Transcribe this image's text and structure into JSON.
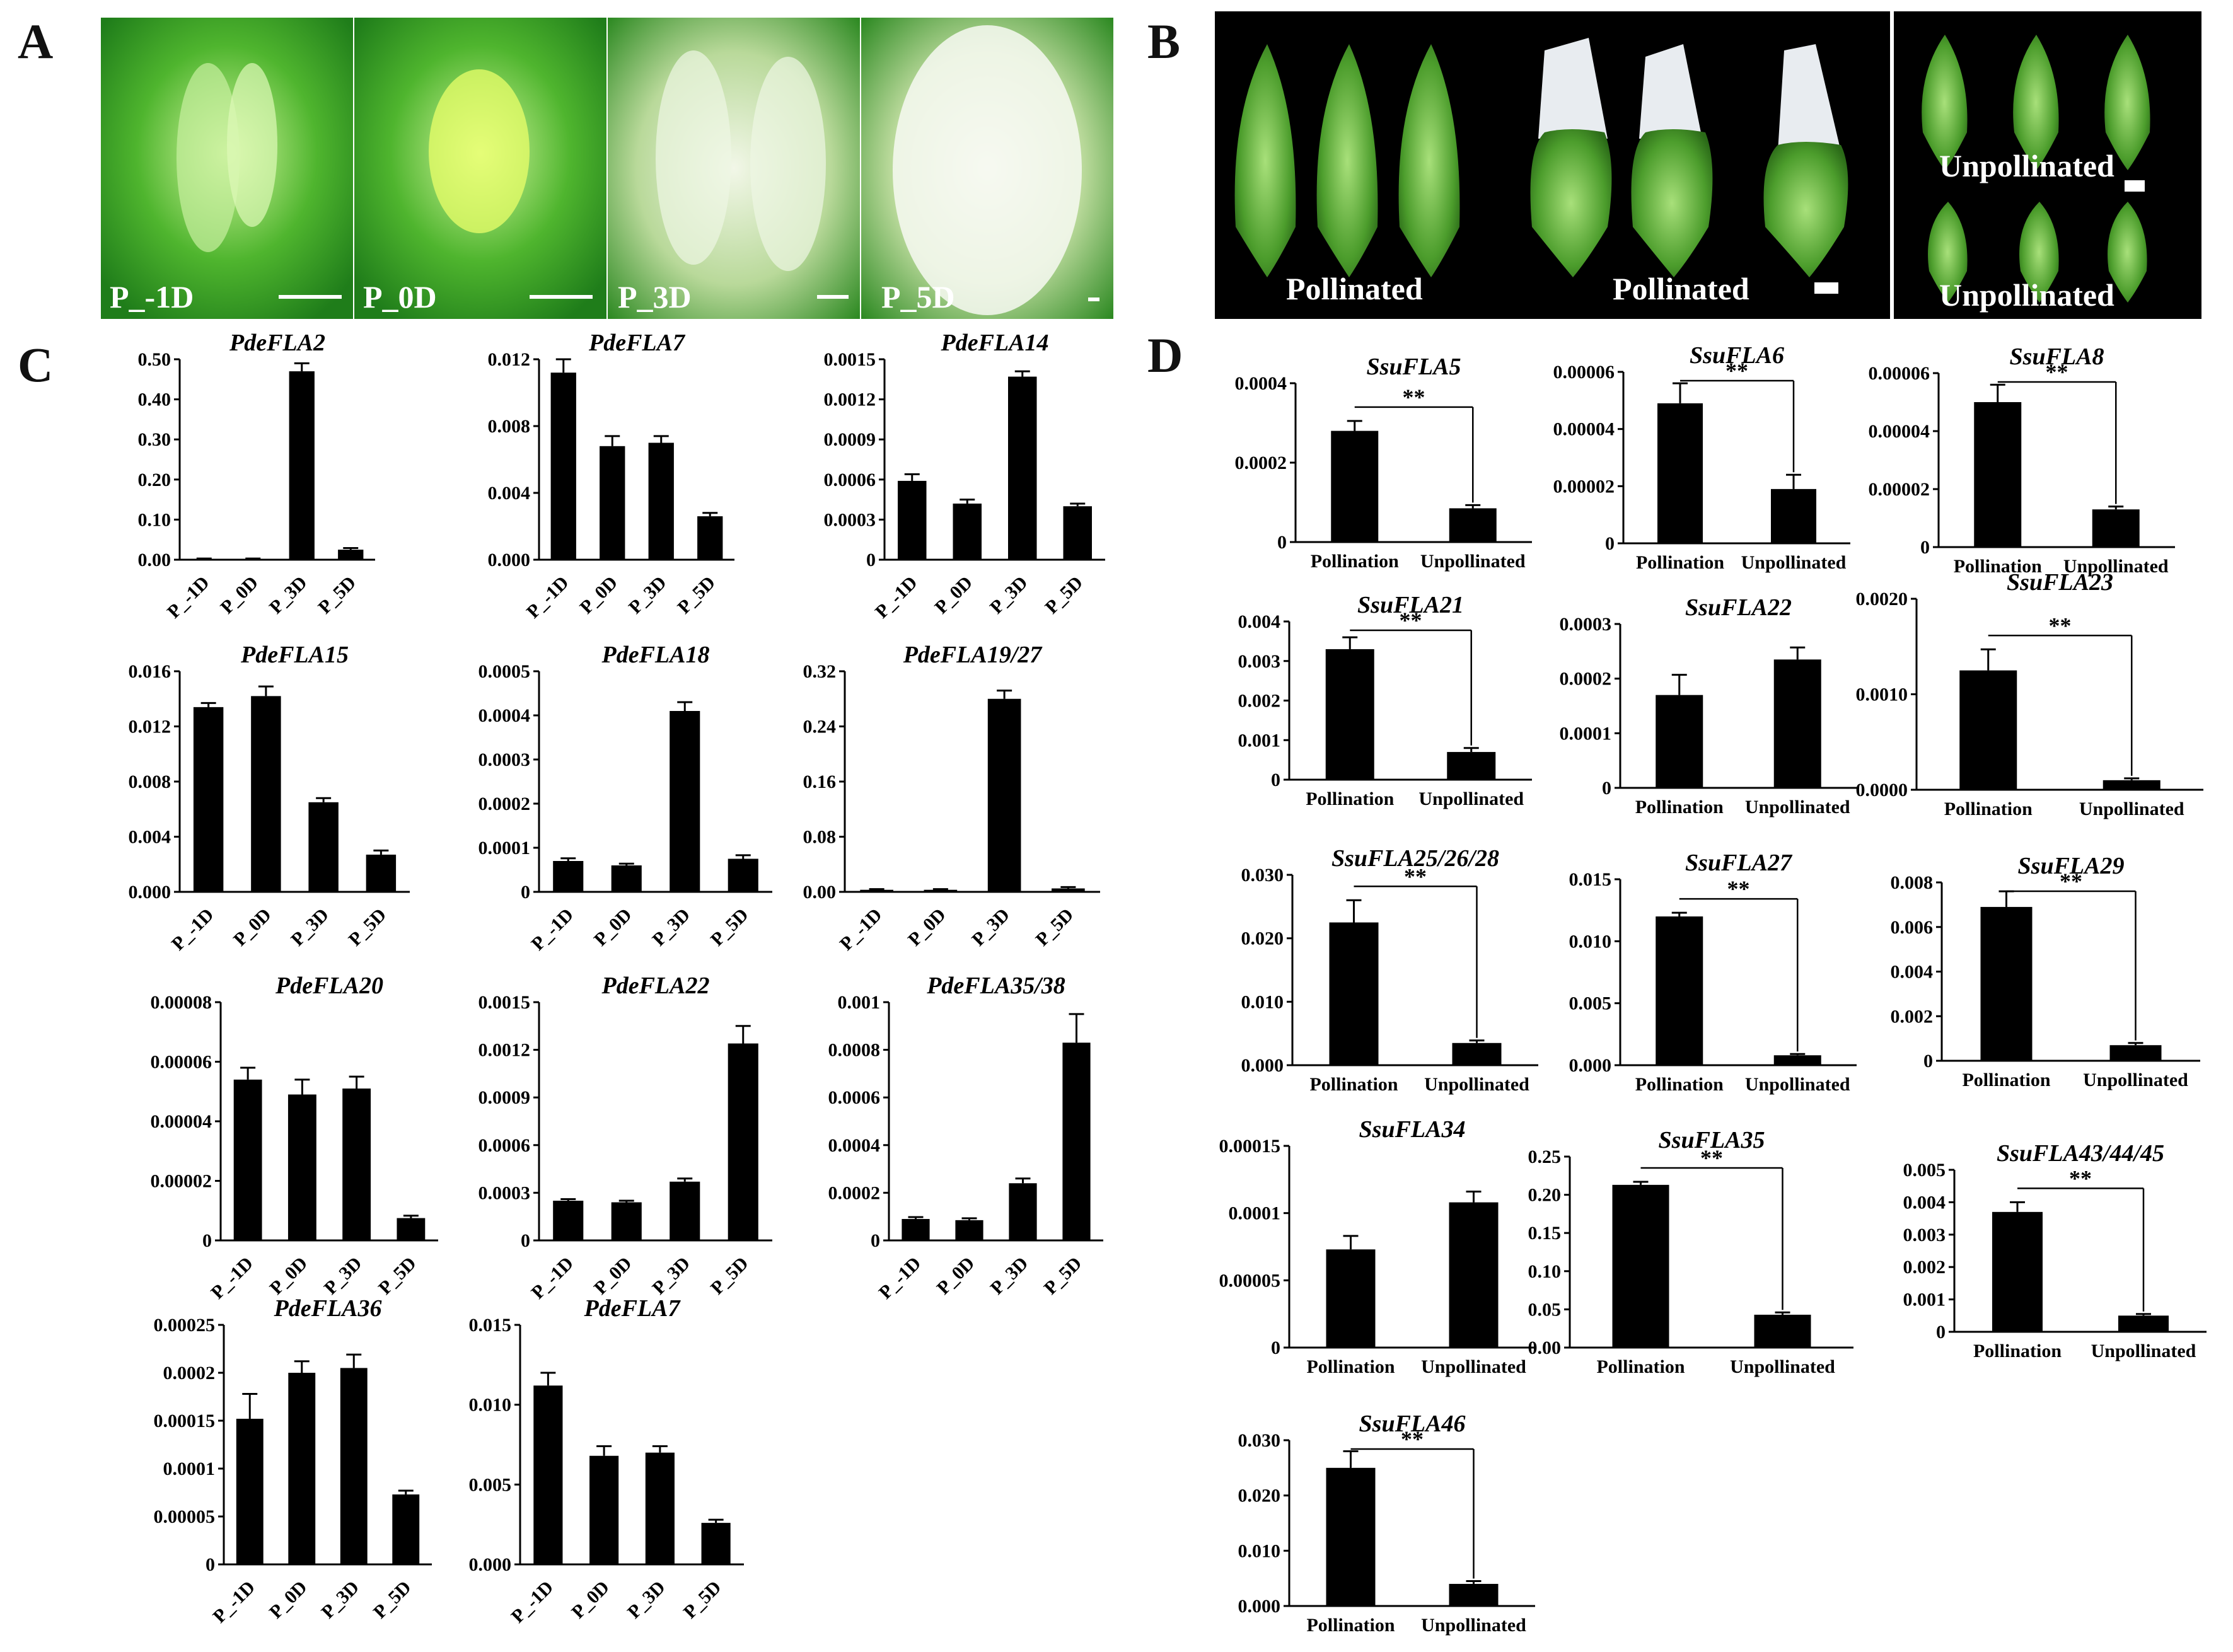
{
  "figure": {
    "panel_letters": [
      "A",
      "B",
      "C",
      "D"
    ],
    "panel_a": {
      "labels": [
        "P_-1D",
        "P_0D",
        "P_3D",
        "P_5D"
      ]
    },
    "panel_b": {
      "labels": [
        "Pollinated",
        "Pollinated",
        "Unpollinated",
        "Unpollinated"
      ]
    }
  },
  "colors": {
    "bar": "#000000",
    "photo_background": "#000000",
    "photo_green": "#3f9a2a"
  },
  "chart_data": [
    {
      "type": "bar",
      "title": "PdeFLA2",
      "categories": [
        "P_-1D",
        "P_0D",
        "P_3D",
        "P_5D"
      ],
      "values": [
        0.002,
        0.002,
        0.47,
        0.025
      ],
      "errors": [
        0.001,
        0.001,
        0.02,
        0.004
      ],
      "yticks": [
        "0.00",
        "0.10",
        "0.20",
        "0.30",
        "0.40",
        "0.50"
      ],
      "ylim": [
        0,
        0.5
      ]
    },
    {
      "type": "bar",
      "title": "PdeFLA7",
      "categories": [
        "P_-1D",
        "P_0D",
        "P_3D",
        "P_5D"
      ],
      "values": [
        0.0112,
        0.0068,
        0.007,
        0.0026
      ],
      "errors": [
        0.0008,
        0.0006,
        0.0004,
        0.0002
      ],
      "yticks": [
        "0.000",
        "0.004",
        "0.008",
        "0.012"
      ],
      "ylim": [
        0,
        0.012
      ]
    },
    {
      "type": "bar",
      "title": "PdeFLA14",
      "categories": [
        "P_-1D",
        "P_0D",
        "P_3D",
        "P_5D"
      ],
      "values": [
        0.00059,
        0.00042,
        0.00137,
        0.0004
      ],
      "errors": [
        5e-05,
        3e-05,
        4e-05,
        2e-05
      ],
      "yticks": [
        "0",
        "0.0003",
        "0.0006",
        "0.0009",
        "0.0012",
        "0.0015"
      ],
      "ylim": [
        0,
        0.0015
      ]
    },
    {
      "type": "bar",
      "title": "PdeFLA15",
      "categories": [
        "P_-1D",
        "P_0D",
        "P_3D",
        "P_5D"
      ],
      "values": [
        0.0134,
        0.0142,
        0.0065,
        0.0027
      ],
      "errors": [
        0.0003,
        0.0007,
        0.0003,
        0.0003
      ],
      "yticks": [
        "0.000",
        "0.004",
        "0.008",
        "0.012",
        "0.016"
      ],
      "ylim": [
        0,
        0.016
      ]
    },
    {
      "type": "bar",
      "title": "PdeFLA18",
      "categories": [
        "P_-1D",
        "P_0D",
        "P_3D",
        "P_5D"
      ],
      "values": [
        7e-05,
        6e-05,
        0.00041,
        7.5e-05
      ],
      "errors": [
        6e-06,
        4e-06,
        2e-05,
        8e-06
      ],
      "yticks": [
        "0",
        "0.0001",
        "0.0002",
        "0.0003",
        "0.0004",
        "0.0005"
      ],
      "ylim": [
        0,
        0.0005
      ]
    },
    {
      "type": "bar",
      "title": "PdeFLA19/27",
      "categories": [
        "P_-1D",
        "P_0D",
        "P_3D",
        "P_5D"
      ],
      "values": [
        0.003,
        0.003,
        0.28,
        0.005
      ],
      "errors": [
        0.001,
        0.001,
        0.012,
        0.002
      ],
      "yticks": [
        "0.00",
        "0.08",
        "0.16",
        "0.24",
        "0.32"
      ],
      "ylim": [
        0,
        0.32
      ]
    },
    {
      "type": "bar",
      "title": "PdeFLA20",
      "categories": [
        "P_-1D",
        "P_0D",
        "P_3D",
        "P_5D"
      ],
      "values": [
        5.4e-05,
        4.9e-05,
        5.1e-05,
        7.5e-06
      ],
      "errors": [
        4e-06,
        5e-06,
        4e-06,
        8e-07
      ],
      "yticks": [
        "0",
        "0.00002",
        "0.00004",
        "0.00006",
        "0.00008"
      ],
      "ylim": [
        0,
        8e-05
      ]
    },
    {
      "type": "bar",
      "title": "PdeFLA22",
      "categories": [
        "P_-1D",
        "P_0D",
        "P_3D",
        "P_5D"
      ],
      "values": [
        0.00025,
        0.00024,
        0.00037,
        0.00124
      ],
      "errors": [
        1e-05,
        1e-05,
        2e-05,
        0.00011
      ],
      "yticks": [
        "0",
        "0.0003",
        "0.0006",
        "0.0009",
        "0.0012",
        "0.0015"
      ],
      "ylim": [
        0,
        0.0015
      ]
    },
    {
      "type": "bar",
      "title": "PdeFLA35/38",
      "categories": [
        "P_-1D",
        "P_0D",
        "P_3D",
        "P_5D"
      ],
      "values": [
        9e-05,
        8.5e-05,
        0.00024,
        0.00083
      ],
      "errors": [
        8e-06,
        8e-06,
        2e-05,
        0.00012
      ],
      "yticks": [
        "0",
        "0.0002",
        "0.0004",
        "0.0006",
        "0.0008",
        "0.001"
      ],
      "ylim": [
        0,
        0.001
      ]
    },
    {
      "type": "bar",
      "title": "PdeFLA36",
      "categories": [
        "P_-1D",
        "P_0D",
        "P_3D",
        "P_5D"
      ],
      "values": [
        0.000152,
        0.0002,
        0.000205,
        7.3e-05
      ],
      "errors": [
        2.6e-05,
        1.2e-05,
        1.4e-05,
        4e-06
      ],
      "yticks": [
        "0",
        "0.00005",
        "0.0001",
        "0.00015",
        "0.0002",
        "0.00025"
      ],
      "ylim": [
        0,
        0.00025
      ]
    },
    {
      "type": "bar",
      "title": "PdeFLA7",
      "categories": [
        "P_-1D",
        "P_0D",
        "P_3D",
        "P_5D"
      ],
      "values": [
        0.0112,
        0.0068,
        0.007,
        0.0026
      ],
      "errors": [
        0.0008,
        0.0006,
        0.0004,
        0.0002
      ],
      "yticks": [
        "0.000",
        "0.005",
        "0.010",
        "0.015"
      ],
      "ylim": [
        0,
        0.015
      ]
    },
    {
      "type": "bar",
      "title": "SsuFLA5",
      "categories": [
        "Pollination",
        "Unpollinated"
      ],
      "values": [
        0.00028,
        8.5e-05
      ],
      "errors": [
        2.5e-05,
        8e-06
      ],
      "significance": "**",
      "yticks": [
        "0",
        "0.0002",
        "0.0004"
      ],
      "ylim": [
        0,
        0.0004
      ]
    },
    {
      "type": "bar",
      "title": "SsuFLA6",
      "categories": [
        "Pollination",
        "Unpollinated"
      ],
      "values": [
        4.9e-05,
        1.9e-05
      ],
      "errors": [
        7e-06,
        5e-06
      ],
      "significance": "**",
      "yticks": [
        "0",
        "0.00002",
        "0.00004",
        "0.00006"
      ],
      "ylim": [
        0,
        6e-05
      ]
    },
    {
      "type": "bar",
      "title": "SsuFLA8",
      "categories": [
        "Pollination",
        "Unpollinated"
      ],
      "values": [
        5e-05,
        1.3e-05
      ],
      "errors": [
        6e-06,
        1e-06
      ],
      "significance": "**",
      "yticks": [
        "0",
        "0.00002",
        "0.00004",
        "0.00006"
      ],
      "ylim": [
        0,
        6e-05
      ]
    },
    {
      "type": "bar",
      "title": "SsuFLA21",
      "categories": [
        "Pollination",
        "Unpollinated"
      ],
      "values": [
        0.0033,
        0.0007
      ],
      "errors": [
        0.0003,
        0.0001
      ],
      "significance": "**",
      "yticks": [
        "0",
        "0.001",
        "0.002",
        "0.003",
        "0.004"
      ],
      "ylim": [
        0,
        0.004
      ]
    },
    {
      "type": "bar",
      "title": "SsuFLA22",
      "categories": [
        "Pollination",
        "Unpollinated"
      ],
      "values": [
        0.00017,
        0.000235
      ],
      "errors": [
        3.7e-05,
        2.2e-05
      ],
      "yticks": [
        "0",
        "0.0001",
        "0.0002",
        "0.0003"
      ],
      "ylim": [
        0,
        0.0003
      ]
    },
    {
      "type": "bar",
      "title": "SsuFLA23",
      "categories": [
        "Pollination",
        "Unpollinated"
      ],
      "values": [
        0.00125,
        0.0001
      ],
      "errors": [
        0.00022,
        2e-05
      ],
      "significance": "**",
      "yticks": [
        "0.0000",
        "0.0010",
        "0.0020"
      ],
      "ylim": [
        0,
        0.002
      ]
    },
    {
      "type": "bar",
      "title": "SsuFLA25/26/28",
      "categories": [
        "Pollination",
        "Unpollinated"
      ],
      "values": [
        0.0225,
        0.0035
      ],
      "errors": [
        0.0035,
        0.0004
      ],
      "significance": "**",
      "yticks": [
        "0.000",
        "0.010",
        "0.020",
        "0.030"
      ],
      "ylim": [
        0,
        0.03
      ]
    },
    {
      "type": "bar",
      "title": "SsuFLA27",
      "categories": [
        "Pollination",
        "Unpollinated"
      ],
      "values": [
        0.012,
        0.0008
      ],
      "errors": [
        0.0003,
        0.0001
      ],
      "significance": "**",
      "yticks": [
        "0.000",
        "0.005",
        "0.010",
        "0.015"
      ],
      "ylim": [
        0,
        0.015
      ]
    },
    {
      "type": "bar",
      "title": "SsuFLA29",
      "categories": [
        "Pollination",
        "Unpollinated"
      ],
      "values": [
        0.0069,
        0.0007
      ],
      "errors": [
        0.0007,
        0.0001
      ],
      "significance": "**",
      "yticks": [
        "0",
        "0.002",
        "0.004",
        "0.006",
        "0.008"
      ],
      "ylim": [
        0,
        0.008
      ]
    },
    {
      "type": "bar",
      "title": "SsuFLA34",
      "categories": [
        "Pollination",
        "Unpollinated"
      ],
      "values": [
        7.3e-05,
        0.000108
      ],
      "errors": [
        1e-05,
        8e-06
      ],
      "yticks": [
        "0",
        "0.00005",
        "0.0001",
        "0.00015"
      ],
      "ylim": [
        0,
        0.00015
      ]
    },
    {
      "type": "bar",
      "title": "SsuFLA35",
      "categories": [
        "Pollination",
        "Unpollinated"
      ],
      "values": [
        0.213,
        0.043
      ],
      "errors": [
        0.004,
        0.003
      ],
      "significance": "**",
      "yticks": [
        "0.00",
        "0.05",
        "0.10",
        "0.15",
        "0.20",
        "0.25"
      ],
      "ylim": [
        0,
        0.25
      ]
    },
    {
      "type": "bar",
      "title": "SsuFLA43/44/45",
      "categories": [
        "Pollination",
        "Unpollinated"
      ],
      "values": [
        0.0037,
        0.0005
      ],
      "errors": [
        0.0003,
        5e-05
      ],
      "significance": "**",
      "yticks": [
        "0",
        "0.001",
        "0.002",
        "0.003",
        "0.004",
        "0.005"
      ],
      "ylim": [
        0,
        0.005
      ]
    },
    {
      "type": "bar",
      "title": "SsuFLA46",
      "categories": [
        "Pollination",
        "Unpollinated"
      ],
      "values": [
        0.025,
        0.004
      ],
      "errors": [
        0.003,
        0.0005
      ],
      "significance": "**",
      "yticks": [
        "0.000",
        "0.010",
        "0.020",
        "0.030"
      ],
      "ylim": [
        0,
        0.03
      ]
    }
  ]
}
